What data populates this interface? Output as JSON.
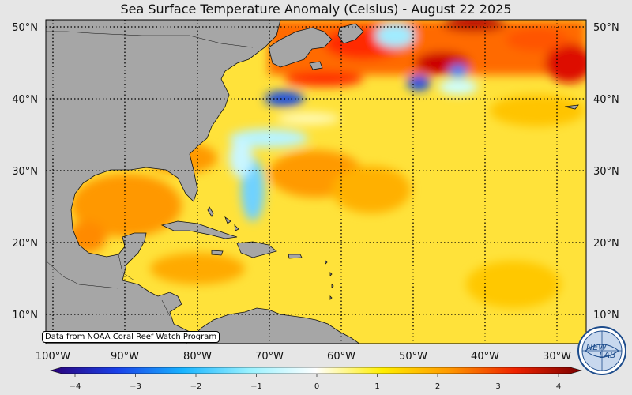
{
  "title": "Sea Surface Temperature Anomaly (Celsius) - August 22 2025",
  "source_note": "Data from NOAA Coral Reef Watch Program",
  "logo": {
    "text_top": "NEW",
    "text_bottom": "LAB",
    "icon": "globe-logo"
  },
  "lat_labels_left": [
    "50°N",
    "40°N",
    "30°N",
    "20°N",
    "10°N"
  ],
  "lat_labels_right": [
    "50°N",
    "40°N",
    "30°N",
    "20°N",
    "10°N"
  ],
  "lon_labels": [
    "100°W",
    "90°W",
    "80°W",
    "70°W",
    "60°W",
    "50°W",
    "40°W",
    "30°W"
  ],
  "colorbar": {
    "min": -4,
    "max": 4,
    "tick_labels": [
      "−4",
      "−3",
      "−2",
      "−1",
      "0",
      "1",
      "2",
      "3",
      "4"
    ],
    "colors": [
      "#2a0077",
      "#1a40e8",
      "#19b4ff",
      "#9af2ff",
      "#ffffff",
      "#ffee00",
      "#ff9900",
      "#ee2200",
      "#7a0000"
    ]
  },
  "colors": {
    "land": "#a6a6a6",
    "ocean_warm": "#ffd700",
    "ocean_hot": "#ff8c00",
    "ocean_cold": "#7fdcff",
    "background": "#e6e6e6"
  }
}
